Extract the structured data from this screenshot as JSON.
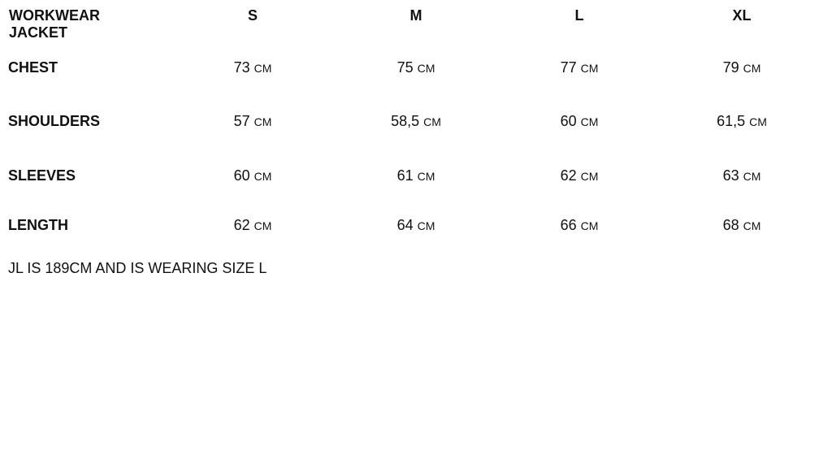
{
  "title_line1": "WORKWEAR",
  "title_line2": "JACKET",
  "sizes": [
    "S",
    "M",
    "L",
    "XL"
  ],
  "unit": "CM",
  "rows": [
    {
      "label": "CHEST",
      "values": [
        "73",
        "75",
        "77",
        "79"
      ]
    },
    {
      "label": "SHOULDERS",
      "values": [
        "57",
        "58,5",
        "60",
        "61,5"
      ]
    },
    {
      "label": "SLEEVES",
      "values": [
        "60",
        "61",
        "62",
        "63"
      ]
    },
    {
      "label": "LENGTH",
      "values": [
        "62",
        "64",
        "66",
        "68"
      ]
    }
  ],
  "note": "JL IS 189CM AND IS WEARING SIZE L"
}
